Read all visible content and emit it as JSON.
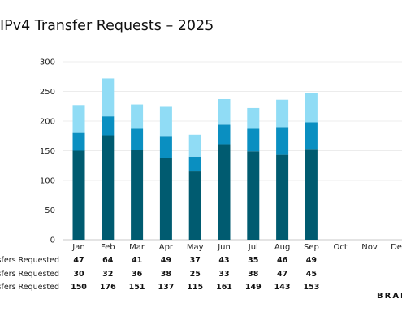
{
  "chart_data": {
    "type": "bar",
    "stacked": true,
    "title": "IPv4 Transfer Requests – 2025",
    "categories": [
      "Jan",
      "Feb",
      "Mar",
      "Apr",
      "May",
      "Jun",
      "Jul",
      "Aug",
      "Sep",
      "Oct",
      "Nov",
      "Dec"
    ],
    "series": [
      {
        "name": "…nsfers Requested",
        "color": "#005b70",
        "values": [
          150,
          176,
          151,
          137,
          115,
          161,
          149,
          143,
          153,
          null,
          null,
          null
        ]
      },
      {
        "name": "…sfers Requested",
        "color": "#0a8fc1",
        "values": [
          30,
          32,
          36,
          38,
          25,
          33,
          38,
          47,
          45,
          null,
          null,
          null
        ]
      },
      {
        "name": "…nsfers Requested",
        "color": "#90dcf5",
        "values": [
          47,
          64,
          41,
          49,
          37,
          43,
          35,
          46,
          49,
          null,
          null,
          null
        ]
      }
    ],
    "table_order": [
      2,
      1,
      0
    ],
    "yticks": [
      0,
      50,
      100,
      150,
      200,
      250,
      300
    ],
    "ylim": [
      0,
      300
    ],
    "grid": true
  },
  "brand": "BRAN"
}
